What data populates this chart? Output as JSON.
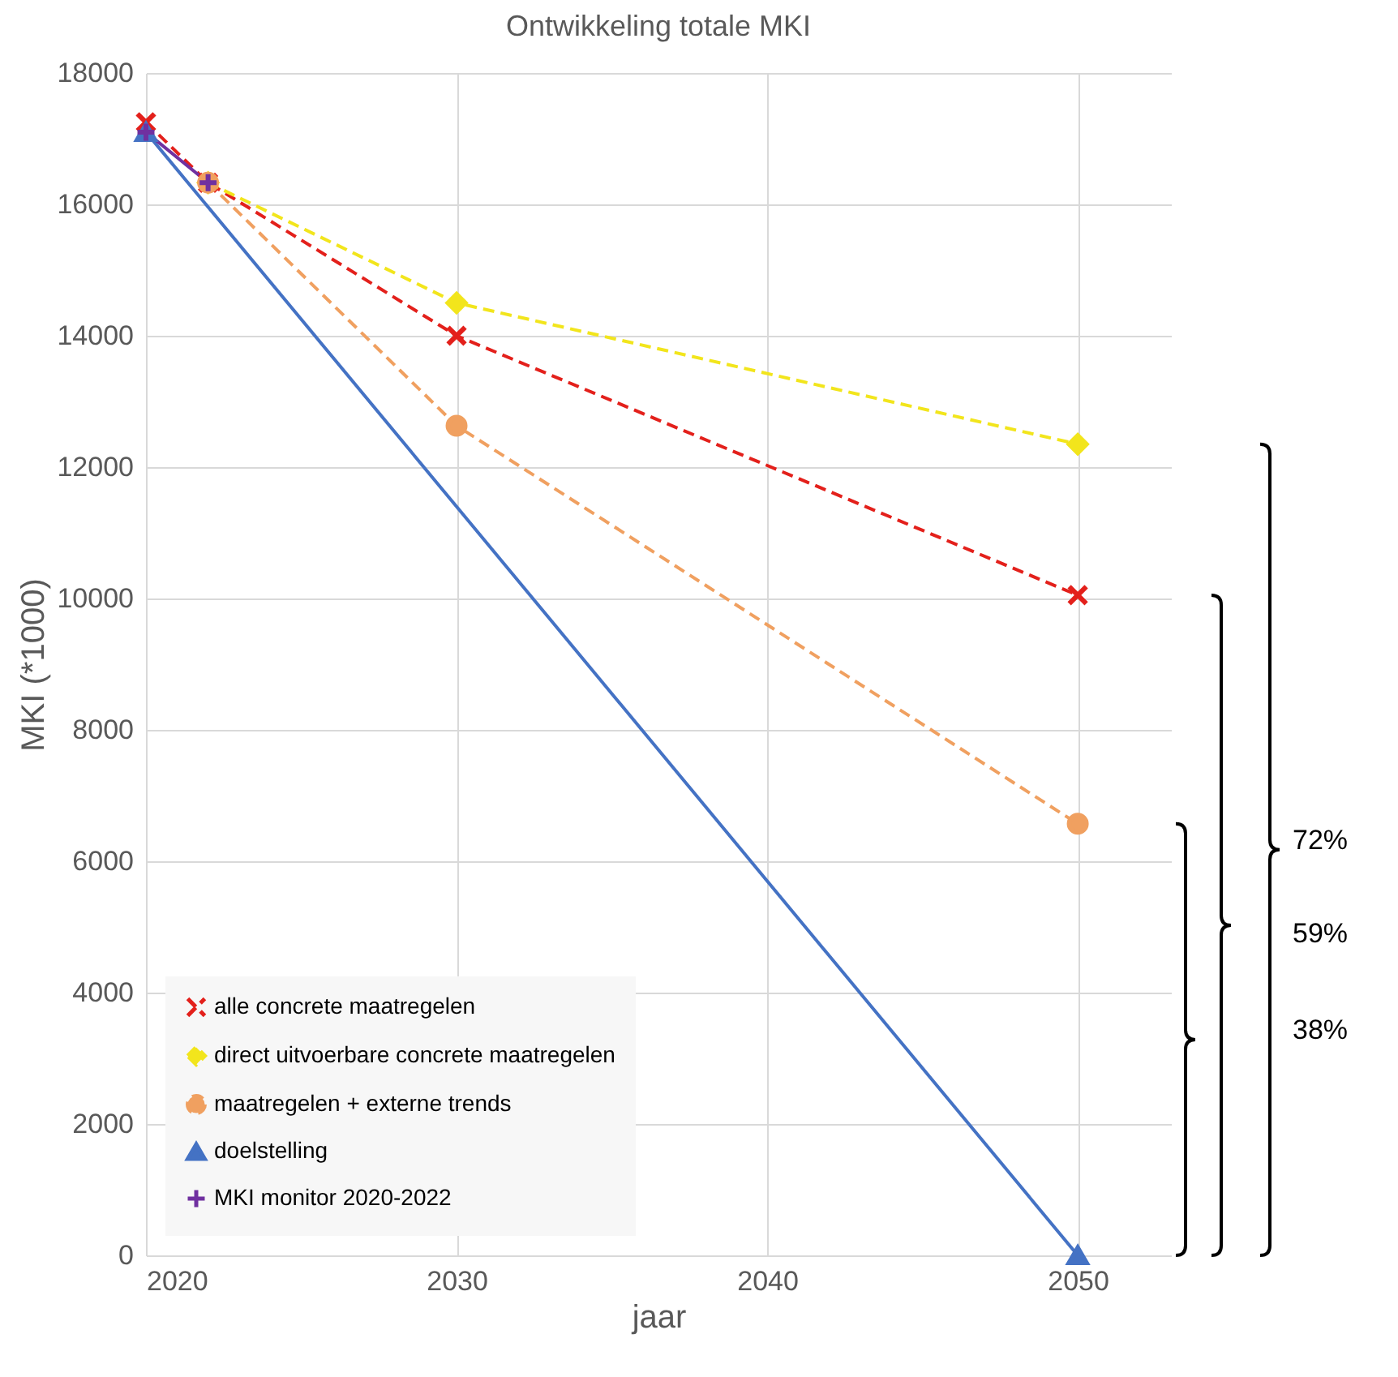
{
  "chart_data": {
    "type": "line",
    "title": "Ontwikkeling totale MKI",
    "xlabel": "jaar",
    "ylabel": "MKI (*1000)",
    "xlim": [
      2020,
      2053
    ],
    "xticks": [
      2020,
      2030,
      2040,
      2050
    ],
    "ylim": [
      0,
      18000
    ],
    "yticks": [
      0,
      2000,
      4000,
      6000,
      8000,
      10000,
      12000,
      14000,
      16000,
      18000
    ],
    "grid": true,
    "legend": "bottom left",
    "series": [
      {
        "name": "alle concrete maatregelen",
        "color": "#e3201b",
        "marker": "cross",
        "line_style": "dashed",
        "x": [
          2020,
          2022,
          2030,
          2050
        ],
        "values": [
          17250,
          16330,
          14000,
          10050
        ]
      },
      {
        "name": "direct uitvoerbare concrete maatregelen",
        "color": "#f2e51c",
        "marker": "diamond",
        "line_style": "dashed",
        "x": [
          2022,
          2030,
          2050
        ],
        "values": [
          16330,
          14500,
          12350
        ]
      },
      {
        "name": "maatregelen + externe trends",
        "color": "#f0a060",
        "marker": "circle",
        "line_style": "dashed",
        "x": [
          2022,
          2030,
          2050
        ],
        "values": [
          16330,
          12630,
          6570
        ]
      },
      {
        "name": "doelstelling",
        "color": "#4472c4",
        "marker": "triangle",
        "line_style": "solid",
        "x": [
          2020,
          2050
        ],
        "values": [
          17100,
          0
        ]
      },
      {
        "name": "MKI monitor 2020-2022",
        "color": "#7030a0",
        "marker": "plus",
        "line_style": "solid",
        "x": [
          2020,
          2022
        ],
        "values": [
          17100,
          16330
        ]
      }
    ],
    "annotations": [
      "72%",
      "59%",
      "38%"
    ]
  }
}
